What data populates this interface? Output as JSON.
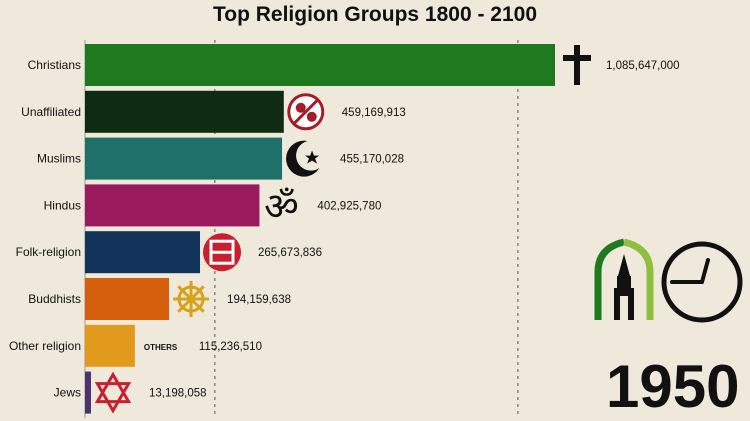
{
  "chart_data": {
    "type": "bar",
    "orientation": "horizontal",
    "title": "Top Religion Groups 1800 - 2100",
    "categories": [
      "Christians",
      "Unaffiliated",
      "Muslims",
      "Hindus",
      "Folk-religion",
      "Buddhists",
      "Other religion",
      "Jews"
    ],
    "values": [
      1085647000,
      459169913,
      455170028,
      402925780,
      265673836,
      194159638,
      115236510,
      13198058
    ],
    "value_labels": [
      "1,085,647,000",
      "459,169,913",
      "455,170,028",
      "402,925,780",
      "265,673,836",
      "194,159,638",
      "115,236,510",
      "13,198,058"
    ],
    "colors": [
      "#1f7a1f",
      "#0f2b12",
      "#1e7068",
      "#9a1a5d",
      "#12335a",
      "#d65f0e",
      "#e19a1c",
      "#4a3470"
    ],
    "icons": [
      "latin-cross-icon",
      "unaffiliated-symbol-icon",
      "star-crescent-icon",
      "om-icon",
      "folk-religion-symbol-icon",
      "dharma-wheel-icon",
      "others-text-icon",
      "star-of-david-icon"
    ],
    "other_icon_text": "OTHERS",
    "year": "1950",
    "xlabel": "",
    "ylabel": "",
    "grid": "vertical dashed",
    "legend": "none"
  }
}
